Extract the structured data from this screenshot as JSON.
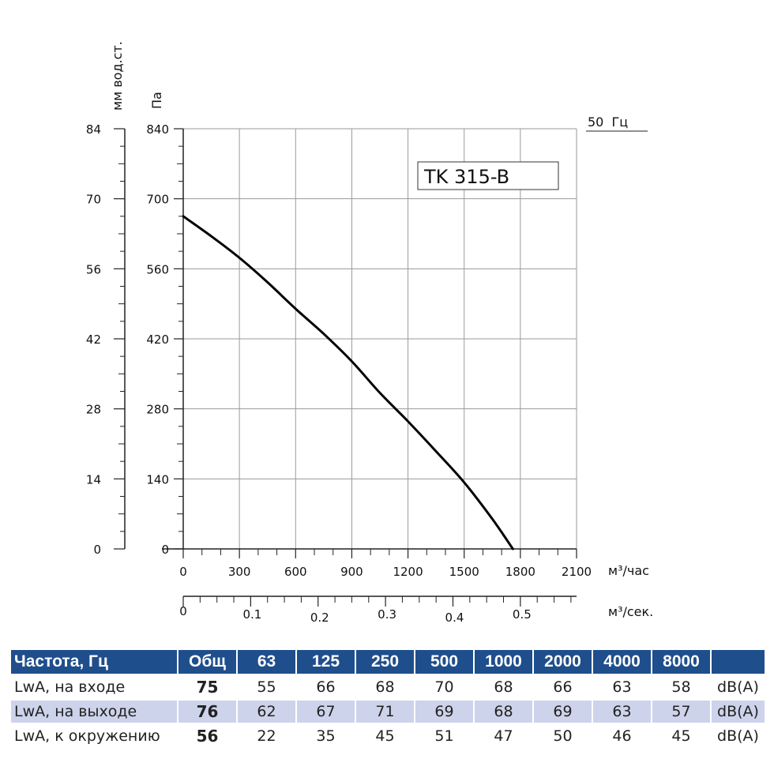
{
  "chart_data": {
    "type": "line",
    "model_label": "TK 315-B",
    "frequency_label": "50  Гц",
    "y_left_unit": "мм вод.ст.",
    "y_right_unit": "Па",
    "y_left_ticks": [
      "84",
      "70",
      "56",
      "42",
      "28",
      "14",
      "0"
    ],
    "y_right_ticks": [
      "840",
      "700",
      "560",
      "420",
      "280",
      "140",
      "0"
    ],
    "ylim": [
      0,
      840
    ],
    "x_unit": "м³/час",
    "x_ticks": [
      "0",
      "300",
      "600",
      "900",
      "1200",
      "1500",
      "1800",
      "2100"
    ],
    "xlim": [
      0,
      2100
    ],
    "x2_unit": "м³/сек.",
    "x2_ticks": [
      "0",
      "0.1",
      "0.2",
      "0.3",
      "0.4",
      "0.5"
    ],
    "x2_values": [
      0,
      0.1,
      0.2,
      0.3,
      0.4,
      0.5
    ],
    "grid": true,
    "series": [
      {
        "x": [
          0,
          150,
          300,
          450,
          600,
          750,
          900,
          1050,
          1200,
          1350,
          1500,
          1650,
          1760
        ],
        "y": [
          665,
          625,
          582,
          533,
          480,
          430,
          375,
          312,
          255,
          195,
          133,
          60,
          0
        ]
      }
    ]
  },
  "table": {
    "header": [
      "Частота, Гц",
      "Общ",
      "63",
      "125",
      "250",
      "500",
      "1000",
      "2000",
      "4000",
      "8000",
      ""
    ],
    "rows": [
      {
        "label": "LwA, на входе",
        "total": "75",
        "values": [
          "55",
          "66",
          "68",
          "70",
          "68",
          "66",
          "63",
          "58"
        ],
        "unit": "dB(A)"
      },
      {
        "label": "LwA, на выходе",
        "total": "76",
        "values": [
          "62",
          "67",
          "71",
          "69",
          "68",
          "69",
          "63",
          "57"
        ],
        "unit": "dB(A)"
      },
      {
        "label": "LwA, к окружению",
        "total": "56",
        "values": [
          "22",
          "35",
          "45",
          "51",
          "47",
          "50",
          "46",
          "45"
        ],
        "unit": "dB(A)"
      }
    ]
  }
}
